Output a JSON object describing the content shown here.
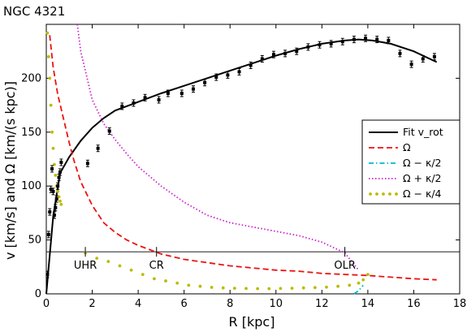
{
  "chart_data": {
    "type": "line",
    "title": "NGC 4321",
    "xlabel": "R [kpc]",
    "ylabel": "v [km/s] and Ω [km/(s kpc)]",
    "xlim": [
      0,
      18
    ],
    "ylim": [
      0,
      250
    ],
    "x_ticks": [
      0,
      2,
      4,
      6,
      8,
      10,
      12,
      14,
      16,
      18
    ],
    "y_ticks": [
      0,
      50,
      100,
      150,
      200
    ],
    "grid": false,
    "legend_position": "center-right",
    "horizontal_line_y": 39,
    "observed_points": {
      "name": "",
      "x": [
        0.05,
        0.1,
        0.15,
        0.2,
        0.25,
        0.3,
        0.35,
        0.4,
        0.45,
        0.5,
        0.55,
        0.6,
        0.65,
        1.8,
        2.25,
        2.75,
        3.3,
        3.8,
        4.3,
        4.9,
        5.3,
        5.9,
        6.4,
        6.9,
        7.4,
        7.9,
        8.4,
        8.9,
        9.4,
        9.9,
        10.4,
        10.9,
        11.4,
        11.9,
        12.4,
        12.9,
        13.4,
        13.9,
        14.4,
        14.9,
        15.4,
        15.9,
        16.4,
        16.9
      ],
      "y": [
        18,
        55,
        76,
        97,
        116,
        95,
        73,
        80,
        88,
        100,
        108,
        113,
        122,
        121,
        135,
        151,
        174,
        177,
        182,
        180,
        186,
        186,
        190,
        196,
        201,
        203,
        206,
        212,
        218,
        222,
        223,
        225,
        229,
        231,
        232,
        234,
        236,
        237,
        236,
        235,
        223,
        213,
        218,
        220
      ]
    },
    "series": [
      {
        "name": "Fit v_rot",
        "color": "#000000",
        "style": "solid",
        "x": [
          0,
          0.3,
          0.6,
          1.0,
          1.5,
          2.0,
          2.5,
          3.0,
          4.0,
          5.0,
          6.0,
          7.0,
          8.0,
          9.0,
          10.0,
          11.0,
          12.0,
          13.0,
          13.6,
          14.2,
          15.0,
          16.0,
          17.0
        ],
        "y": [
          0,
          72,
          112,
          127,
          142,
          154,
          163,
          170,
          178,
          186,
          193,
          200,
          207,
          214,
          221,
          227,
          232,
          235,
          236,
          235,
          232,
          225,
          215
        ]
      },
      {
        "name": "Ω",
        "color": "#ee1111",
        "style": "dashed",
        "x": [
          0.15,
          0.3,
          0.5,
          0.8,
          1.0,
          1.2,
          1.5,
          2.0,
          2.5,
          3.0,
          3.5,
          4.0,
          5.0,
          6.0,
          7.0,
          8.0,
          9.0,
          10.0,
          11.0,
          12.0,
          13.0,
          14.0,
          15.0,
          16.0,
          17.0
        ],
        "y": [
          240,
          210,
          185,
          158,
          140,
          124,
          104,
          82,
          66,
          57,
          50,
          45,
          37,
          32,
          29,
          26,
          24,
          22,
          21,
          19,
          18,
          17,
          15.5,
          14,
          13
        ]
      },
      {
        "name": "Ω − κ/2",
        "color": "#00bbcc",
        "style": "dashdot",
        "x": [
          13.4,
          13.6,
          13.8
        ],
        "y": [
          0,
          3,
          8
        ]
      },
      {
        "name": "Ω + κ/2",
        "color": "#cc22cc",
        "style": "dotted",
        "x": [
          1.35,
          1.5,
          2.0,
          2.5,
          3.0,
          3.5,
          4.0,
          5.0,
          6.0,
          7.0,
          8.0,
          9.0,
          10.0,
          11.0,
          12.0,
          13.0,
          13.6
        ],
        "y": [
          250,
          225,
          180,
          158,
          143,
          130,
          118,
          100,
          85,
          73,
          66,
          62,
          58,
          54,
          48,
          38,
          22
        ]
      },
      {
        "name": "Ω − κ/4",
        "color": "#bbbb00",
        "style": "dots",
        "x": [
          0.05,
          0.1,
          0.15,
          0.2,
          0.25,
          0.3,
          0.35,
          0.4,
          0.45,
          0.5,
          0.55,
          0.6,
          0.65,
          1.7,
          2.2,
          2.7,
          3.2,
          3.7,
          4.2,
          4.7,
          5.2,
          5.7,
          6.2,
          6.7,
          7.2,
          7.7,
          8.2,
          8.7,
          9.2,
          9.7,
          10.2,
          10.7,
          11.2,
          11.7,
          12.2,
          12.7,
          13.2,
          13.6,
          13.8,
          14.0
        ],
        "y": [
          242,
          220,
          200,
          175,
          150,
          135,
          120,
          110,
          100,
          95,
          90,
          86,
          83,
          38,
          33,
          30,
          26,
          22,
          18,
          14,
          12,
          10,
          8,
          7,
          6,
          5.5,
          5.2,
          5,
          4.8,
          4.8,
          5,
          5.2,
          5.5,
          5.8,
          6.2,
          7,
          8,
          10,
          13,
          18
        ]
      }
    ],
    "resonance_markers": [
      {
        "label": "UHR",
        "x": 1.7,
        "y": 39
      },
      {
        "label": "CR",
        "x": 4.8,
        "y": 39
      },
      {
        "label": "OLR",
        "x": 13.0,
        "y": 39
      }
    ]
  }
}
